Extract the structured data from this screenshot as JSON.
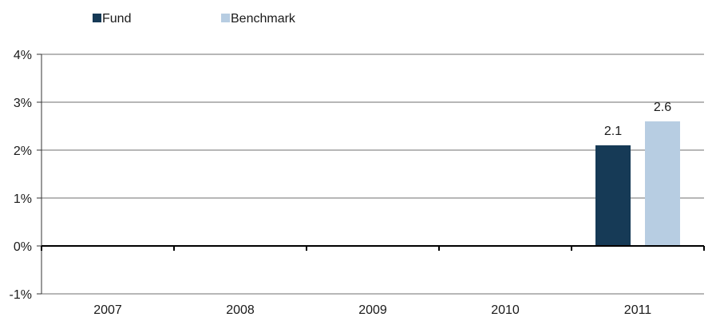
{
  "chart_data": {
    "type": "bar",
    "title": "",
    "xlabel": "",
    "ylabel": "",
    "categories": [
      "2007",
      "2008",
      "2009",
      "2010",
      "2011"
    ],
    "series": [
      {
        "name": "Fund",
        "color": "#163a56",
        "values": [
          null,
          null,
          null,
          null,
          2.1
        ],
        "labels": [
          null,
          null,
          null,
          null,
          "2.1"
        ]
      },
      {
        "name": "Benchmark",
        "color": "#b7cde2",
        "values": [
          null,
          null,
          null,
          null,
          2.6
        ],
        "labels": [
          null,
          null,
          null,
          null,
          "2.6"
        ]
      }
    ],
    "ylim": [
      -1,
      4
    ],
    "yticks": [
      4,
      3,
      2,
      1,
      0,
      -1
    ],
    "ytick_labels": [
      "4%",
      "3%",
      "2%",
      "1%",
      "0%",
      "-1%"
    ],
    "grid": true,
    "legend_position": "top-left"
  }
}
